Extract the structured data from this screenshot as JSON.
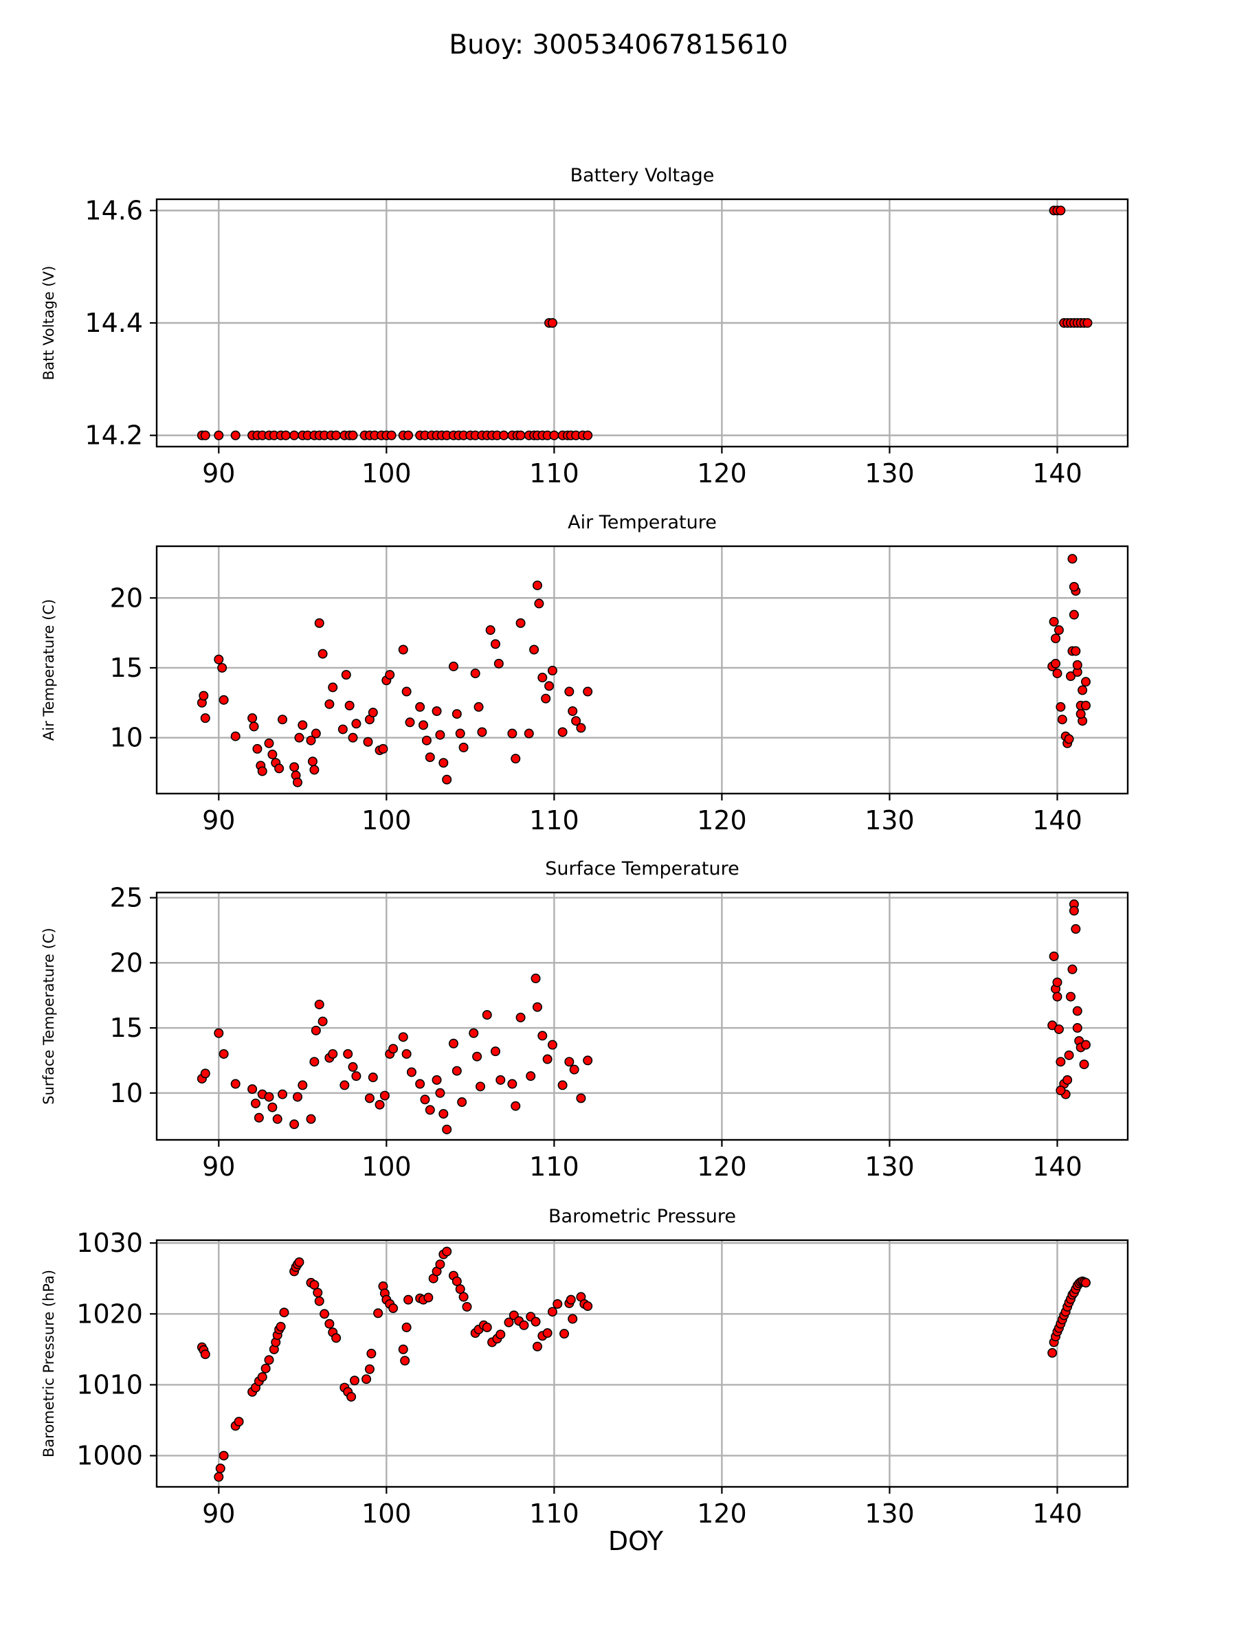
{
  "suptitle": "Buoy: 300534067815610",
  "xlabel": "DOY",
  "chart_data": [
    {
      "type": "scatter",
      "title": "Battery Voltage",
      "ylabel": "Batt Voltage (V)",
      "xlim": [
        86.3,
        144.2
      ],
      "ylim": [
        14.18,
        14.62
      ],
      "xticks": [
        90,
        100,
        110,
        120,
        130,
        140
      ],
      "yticks": [
        14.2,
        14.4,
        14.6
      ],
      "ytick_decimals": 1,
      "grid": true,
      "marker_color": "#ff0000",
      "marker_edge": "#000000",
      "x": [
        89.0,
        89.2,
        90.0,
        91.0,
        92.0,
        92.3,
        92.6,
        93.0,
        93.3,
        93.7,
        94.0,
        94.5,
        95.0,
        95.3,
        95.7,
        96.0,
        96.3,
        96.7,
        97.0,
        97.5,
        97.8,
        98.0,
        98.7,
        99.0,
        99.3,
        99.7,
        100.0,
        100.3,
        101.0,
        101.3,
        102.0,
        102.3,
        102.7,
        103.0,
        103.3,
        103.6,
        104.0,
        104.3,
        104.6,
        105.0,
        105.3,
        105.7,
        106.0,
        106.3,
        106.6,
        107.0,
        107.5,
        107.8,
        108.0,
        108.5,
        108.8,
        109.0,
        109.3,
        109.6,
        110.0,
        110.5,
        110.8,
        111.0,
        111.3,
        111.7,
        112.0,
        109.7,
        109.9,
        139.8,
        140.0,
        140.2,
        140.4,
        140.6,
        140.8,
        141.0,
        141.2,
        141.4,
        141.6,
        141.8
      ],
      "y": [
        14.2,
        14.2,
        14.2,
        14.2,
        14.2,
        14.2,
        14.2,
        14.2,
        14.2,
        14.2,
        14.2,
        14.2,
        14.2,
        14.2,
        14.2,
        14.2,
        14.2,
        14.2,
        14.2,
        14.2,
        14.2,
        14.2,
        14.2,
        14.2,
        14.2,
        14.2,
        14.2,
        14.2,
        14.2,
        14.2,
        14.2,
        14.2,
        14.2,
        14.2,
        14.2,
        14.2,
        14.2,
        14.2,
        14.2,
        14.2,
        14.2,
        14.2,
        14.2,
        14.2,
        14.2,
        14.2,
        14.2,
        14.2,
        14.2,
        14.2,
        14.2,
        14.2,
        14.2,
        14.2,
        14.2,
        14.2,
        14.2,
        14.2,
        14.2,
        14.2,
        14.2,
        14.4,
        14.4,
        14.6,
        14.6,
        14.6,
        14.4,
        14.4,
        14.4,
        14.4,
        14.4,
        14.4,
        14.4,
        14.4
      ]
    },
    {
      "type": "scatter",
      "title": "Air Temperature",
      "ylabel": "Air Temperature (C)",
      "xlim": [
        86.3,
        144.2
      ],
      "ylim": [
        6.0,
        23.7
      ],
      "xticks": [
        90,
        100,
        110,
        120,
        130,
        140
      ],
      "yticks": [
        10,
        15,
        20
      ],
      "ytick_decimals": 0,
      "grid": true,
      "marker_color": "#ff0000",
      "marker_edge": "#000000",
      "x": [
        89.0,
        89.1,
        89.2,
        90.0,
        90.2,
        90.3,
        91.0,
        92.0,
        92.1,
        92.3,
        92.5,
        92.6,
        93.0,
        93.2,
        93.4,
        93.6,
        93.8,
        94.5,
        94.6,
        94.7,
        94.8,
        95.0,
        95.5,
        95.6,
        95.7,
        95.8,
        96.0,
        96.2,
        96.6,
        96.8,
        97.4,
        97.6,
        97.8,
        98.0,
        98.2,
        98.9,
        99.0,
        99.2,
        99.6,
        99.8,
        100.0,
        100.2,
        101.0,
        101.2,
        101.4,
        102.0,
        102.2,
        102.4,
        102.6,
        103.0,
        103.2,
        103.4,
        103.6,
        104.0,
        104.2,
        104.4,
        104.6,
        105.3,
        105.5,
        105.7,
        106.2,
        106.5,
        106.7,
        107.5,
        107.7,
        108.0,
        108.5,
        108.8,
        109.0,
        109.1,
        109.3,
        109.5,
        109.7,
        109.9,
        110.5,
        110.9,
        111.1,
        111.3,
        111.6,
        112.0,
        139.7,
        139.8,
        139.9,
        140.0,
        140.1,
        140.2,
        140.3,
        140.5,
        140.6,
        140.7,
        140.8,
        140.9,
        141.0,
        141.1,
        141.2,
        141.4,
        141.5,
        141.7
      ],
      "y": [
        12.5,
        13.0,
        11.4,
        15.6,
        15.0,
        12.7,
        10.1,
        11.4,
        10.8,
        9.2,
        8.0,
        7.6,
        9.6,
        8.8,
        8.2,
        7.8,
        11.3,
        7.9,
        7.3,
        6.8,
        10.0,
        10.9,
        9.8,
        8.3,
        7.7,
        10.3,
        18.2,
        16.0,
        12.4,
        13.6,
        10.6,
        14.5,
        12.3,
        10.0,
        11.0,
        9.7,
        11.3,
        11.8,
        9.1,
        9.2,
        14.1,
        14.5,
        16.3,
        13.3,
        11.1,
        12.2,
        10.9,
        9.8,
        8.6,
        11.9,
        10.2,
        8.2,
        7.0,
        15.1,
        11.7,
        10.3,
        9.3,
        14.6,
        12.2,
        10.4,
        17.7,
        16.7,
        15.3,
        10.3,
        8.5,
        18.2,
        10.3,
        16.3,
        20.9,
        19.6,
        14.3,
        12.8,
        13.7,
        14.8,
        10.4,
        13.3,
        11.9,
        11.2,
        10.7,
        13.3,
        15.1,
        18.3,
        17.1,
        14.6,
        17.7,
        12.2,
        11.3,
        10.1,
        9.6,
        9.9,
        14.4,
        16.2,
        18.8,
        20.5,
        14.7,
        12.3,
        13.4,
        12.3
      ],
      "x_extra": [
        141.5,
        141.7,
        141.4,
        141.2,
        141.0,
        140.9,
        141.1,
        139.9
      ],
      "y_extra": [
        11.2,
        14.0,
        11.7,
        15.2,
        20.8,
        22.8,
        16.2,
        15.3
      ]
    },
    {
      "type": "scatter",
      "title": "Surface Temperature",
      "ylabel": "Surface Temperature (C)",
      "xlim": [
        86.3,
        144.2
      ],
      "ylim": [
        6.4,
        25.4
      ],
      "xticks": [
        90,
        100,
        110,
        120,
        130,
        140
      ],
      "yticks": [
        10,
        15,
        20,
        25
      ],
      "ytick_decimals": 0,
      "grid": true,
      "marker_color": "#ff0000",
      "marker_edge": "#000000",
      "x": [
        89.0,
        89.2,
        90.0,
        90.3,
        91.0,
        92.0,
        92.2,
        92.4,
        92.6,
        93.0,
        93.2,
        93.5,
        93.8,
        94.5,
        94.7,
        95.0,
        95.5,
        95.7,
        95.8,
        96.0,
        96.2,
        96.6,
        96.8,
        97.5,
        97.7,
        98.0,
        98.2,
        99.0,
        99.2,
        99.6,
        99.9,
        100.2,
        100.4,
        101.0,
        101.2,
        101.5,
        102.0,
        102.3,
        102.6,
        103.0,
        103.2,
        103.4,
        103.6,
        104.0,
        104.2,
        104.5,
        105.2,
        105.4,
        105.6,
        106.0,
        106.5,
        106.8,
        107.5,
        107.7,
        108.0,
        108.6,
        108.9,
        109.0,
        109.3,
        109.6,
        109.9,
        110.5,
        110.9,
        111.2,
        111.6,
        112.0,
        139.7,
        139.8,
        139.9,
        140.0,
        140.1,
        140.2,
        140.4,
        140.5,
        140.6,
        140.7,
        140.8,
        140.9,
        141.0,
        141.1,
        141.2,
        141.3,
        141.4,
        141.6,
        141.7
      ],
      "y": [
        11.1,
        11.5,
        14.6,
        13.0,
        10.7,
        10.3,
        9.2,
        8.1,
        9.9,
        9.7,
        8.9,
        8.0,
        9.9,
        7.6,
        9.7,
        10.6,
        8.0,
        12.4,
        14.8,
        16.8,
        15.5,
        12.7,
        13.0,
        10.6,
        13.0,
        12.0,
        11.3,
        9.6,
        11.2,
        9.1,
        9.8,
        13.0,
        13.4,
        14.3,
        13.0,
        11.6,
        10.7,
        9.5,
        8.7,
        11.0,
        10.0,
        8.4,
        7.2,
        13.8,
        11.7,
        9.3,
        14.6,
        12.8,
        10.5,
        16.0,
        13.2,
        11.0,
        10.7,
        9.0,
        15.8,
        11.3,
        18.8,
        16.6,
        14.4,
        12.6,
        13.7,
        10.6,
        12.4,
        11.8,
        9.6,
        12.5,
        15.2,
        20.5,
        18.0,
        17.4,
        14.9,
        12.4,
        10.7,
        9.9,
        11.0,
        12.9,
        17.4,
        19.5,
        24.5,
        22.6,
        16.3,
        14.0,
        13.5,
        12.2,
        13.7
      ],
      "x_extra": [
        141.0,
        140.0,
        140.2,
        141.2
      ],
      "y_extra": [
        24.0,
        18.5,
        10.2,
        15.0
      ]
    },
    {
      "type": "scatter",
      "title": "Barometric Pressure",
      "ylabel": "Barometric Pressure (hPa)",
      "xlim": [
        86.3,
        144.2
      ],
      "ylim": [
        995.6,
        1030.4
      ],
      "xticks": [
        90,
        100,
        110,
        120,
        130,
        140
      ],
      "yticks": [
        1000,
        1010,
        1020,
        1030
      ],
      "ytick_decimals": 0,
      "grid": true,
      "marker_color": "#ff0000",
      "marker_edge": "#000000",
      "x": [
        89.0,
        89.1,
        89.2,
        90.0,
        90.1,
        90.3,
        91.0,
        91.2,
        92.0,
        92.2,
        92.4,
        92.6,
        92.8,
        93.0,
        93.3,
        93.4,
        93.5,
        93.6,
        93.7,
        93.9,
        94.5,
        94.6,
        94.7,
        94.8,
        95.5,
        95.7,
        95.9,
        96.0,
        96.3,
        96.6,
        96.8,
        97.0,
        97.5,
        97.7,
        97.9,
        98.1,
        98.8,
        99.0,
        99.1,
        99.5,
        99.8,
        99.9,
        100.0,
        100.2,
        100.4,
        101.0,
        101.1,
        101.2,
        101.3,
        102.0,
        102.2,
        102.5,
        102.8,
        103.0,
        103.2,
        103.4,
        103.6,
        104.0,
        104.2,
        104.4,
        104.6,
        104.8,
        105.3,
        105.5,
        105.8,
        106.0,
        106.3,
        106.6,
        106.8,
        107.3,
        107.6,
        107.9,
        108.2,
        108.6,
        108.9,
        109.0,
        109.3,
        109.6,
        109.9,
        110.2,
        110.6,
        110.9,
        111.0,
        111.1,
        111.6,
        111.8,
        112.0,
        139.7,
        139.8,
        139.9,
        140.0,
        140.1,
        140.2,
        140.3,
        140.4,
        140.5,
        140.6,
        140.7,
        140.8,
        140.9,
        141.0,
        141.1,
        141.2,
        141.3,
        141.4,
        141.5,
        141.6,
        141.7
      ],
      "y": [
        1015.3,
        1014.9,
        1014.3,
        997.0,
        998.2,
        1000.0,
        1004.2,
        1004.8,
        1009.0,
        1009.6,
        1010.5,
        1011.1,
        1012.3,
        1013.5,
        1015.0,
        1016.0,
        1017.0,
        1017.8,
        1018.2,
        1020.2,
        1026.0,
        1026.6,
        1027.0,
        1027.3,
        1024.4,
        1024.1,
        1023.0,
        1021.8,
        1020.0,
        1018.6,
        1017.4,
        1016.6,
        1009.6,
        1009.0,
        1008.3,
        1010.6,
        1010.8,
        1012.2,
        1014.4,
        1020.1,
        1023.9,
        1022.9,
        1022.0,
        1021.4,
        1020.8,
        1015.0,
        1013.4,
        1018.1,
        1022.0,
        1022.2,
        1022.0,
        1022.3,
        1025.0,
        1026.0,
        1027.0,
        1028.4,
        1028.8,
        1025.4,
        1024.6,
        1023.5,
        1022.4,
        1021.0,
        1017.3,
        1017.8,
        1018.4,
        1018.1,
        1016.0,
        1016.5,
        1017.1,
        1018.8,
        1019.8,
        1019.0,
        1018.4,
        1019.6,
        1018.9,
        1015.4,
        1016.9,
        1017.3,
        1020.3,
        1021.4,
        1017.2,
        1021.5,
        1022.0,
        1019.3,
        1022.4,
        1021.4,
        1021.1,
        1014.5,
        1016.0,
        1016.8,
        1017.5,
        1018.0,
        1018.6,
        1019.2,
        1019.8,
        1020.3,
        1021.0,
        1021.6,
        1022.1,
        1022.7,
        1023.0,
        1023.5,
        1024.0,
        1024.3,
        1024.5,
        1024.6,
        1024.5,
        1024.4
      ],
      "x_extra": [],
      "y_extra": []
    }
  ]
}
